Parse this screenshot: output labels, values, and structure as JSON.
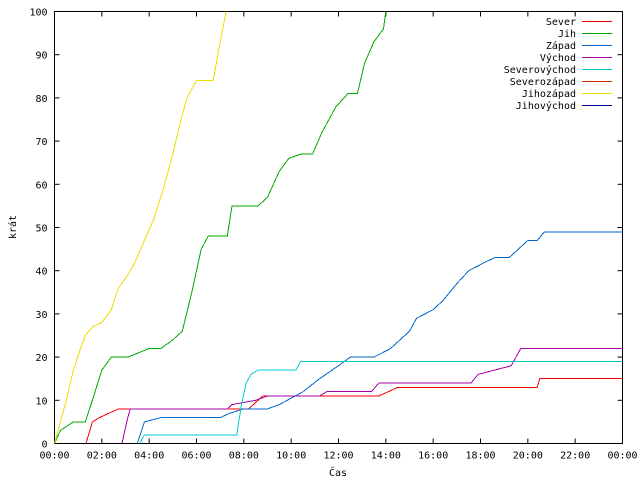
{
  "chart_data": {
    "type": "line",
    "xlabel": "Čas",
    "ylabel": "krát",
    "xlim": [
      0,
      24
    ],
    "ylim": [
      0,
      100
    ],
    "xticks": [
      0,
      2,
      4,
      6,
      8,
      10,
      12,
      14,
      16,
      18,
      20,
      22,
      24
    ],
    "xtick_labels": [
      "00:00",
      "02:00",
      "04:00",
      "06:00",
      "08:00",
      "10:00",
      "12:00",
      "14:00",
      "16:00",
      "18:00",
      "20:00",
      "22:00",
      "00:00"
    ],
    "yticks": [
      0,
      10,
      20,
      30,
      40,
      50,
      60,
      70,
      80,
      90,
      100
    ],
    "ytick_labels": [
      "0",
      "10",
      "20",
      "30",
      "40",
      "50",
      "60",
      "70",
      "80",
      "90",
      "100"
    ],
    "grid": false,
    "legend_position": "top-right",
    "series": [
      {
        "name": "Sever",
        "color": "#ff0000",
        "x": [
          1.33,
          1.6,
          1.9,
          2.7,
          4.0,
          8.2,
          8.4,
          8.8,
          13.7,
          14.1,
          14.5,
          20.4,
          20.5,
          24.0
        ],
        "y": [
          0,
          5,
          6,
          8,
          8,
          8,
          9,
          11,
          11,
          12,
          13,
          13,
          15,
          15
        ]
      },
      {
        "name": "Jih",
        "color": "#00aa00",
        "x": [
          0.0,
          0.25,
          0.8,
          1.3,
          1.6,
          2.0,
          2.4,
          2.7,
          3.1,
          4.0,
          4.5,
          5.0,
          5.4,
          5.8,
          6.2,
          6.5,
          7.0,
          7.3,
          7.5,
          8.0,
          8.6,
          9.0,
          9.5,
          9.9,
          10.4,
          10.9,
          11.3,
          11.9,
          12.4,
          12.8,
          13.1,
          13.5,
          13.9,
          14.0
        ],
        "y": [
          0,
          3,
          5,
          5,
          10,
          17,
          20,
          20,
          20,
          22,
          22,
          24,
          26,
          35,
          45,
          48,
          48,
          48,
          55,
          55,
          55,
          57,
          63,
          66,
          67,
          67,
          72,
          78,
          81,
          81,
          88,
          93,
          96,
          100
        ]
      },
      {
        "name": "Západ",
        "color": "#0066cc",
        "x": [
          3.5,
          3.8,
          4.5,
          7.0,
          7.4,
          8.0,
          9.0,
          9.5,
          10.5,
          11.2,
          12.0,
          12.5,
          13.5,
          14.2,
          15.0,
          15.3,
          16.0,
          16.4,
          17.0,
          17.5,
          18.2,
          18.6,
          19.2,
          19.6,
          20.0,
          20.4,
          20.7,
          24.0
        ],
        "y": [
          0,
          5,
          6,
          6,
          7,
          8,
          8,
          9,
          12,
          15,
          18,
          20,
          20,
          22,
          26,
          29,
          31,
          33,
          37,
          40,
          42,
          43,
          43,
          45,
          47,
          47,
          49,
          49
        ]
      },
      {
        "name": "Východ",
        "color": "#aa00aa",
        "x": [
          2.85,
          3.05,
          3.2,
          7.3,
          7.5,
          8.5,
          9.0,
          11.2,
          11.5,
          13.4,
          13.7,
          17.6,
          17.9,
          19.3,
          19.7,
          24.0
        ],
        "y": [
          0,
          5,
          8,
          8,
          9,
          10,
          11,
          11,
          12,
          12,
          14,
          14,
          16,
          18,
          22,
          22
        ]
      },
      {
        "name": "Severovýchod",
        "color": "#00cccc",
        "x": [
          3.6,
          3.8,
          7.7,
          7.9,
          8.1,
          8.3,
          8.6,
          10.2,
          10.4,
          24.0
        ],
        "y": [
          0,
          2,
          2,
          9,
          14,
          16,
          17,
          17,
          19,
          19
        ]
      },
      {
        "name": "Severozápad",
        "color": "#cc3300",
        "x": [],
        "y": []
      },
      {
        "name": "Jihozápad",
        "color": "#eedd00",
        "x": [
          0.0,
          0.2,
          0.5,
          0.8,
          1.1,
          1.3,
          1.6,
          2.0,
          2.4,
          2.7,
          3.1,
          3.4,
          3.8,
          4.2,
          4.6,
          5.0,
          5.3,
          5.6,
          6.0,
          6.3,
          6.7,
          7.0,
          7.25
        ],
        "y": [
          0,
          4,
          10,
          17,
          22,
          25,
          27,
          28,
          31,
          36,
          39,
          42,
          47,
          52,
          59,
          67,
          74,
          80,
          84,
          84,
          84,
          93,
          100
        ]
      },
      {
        "name": "Jihovýchod",
        "color": "#000099",
        "x": [],
        "y": []
      }
    ]
  }
}
